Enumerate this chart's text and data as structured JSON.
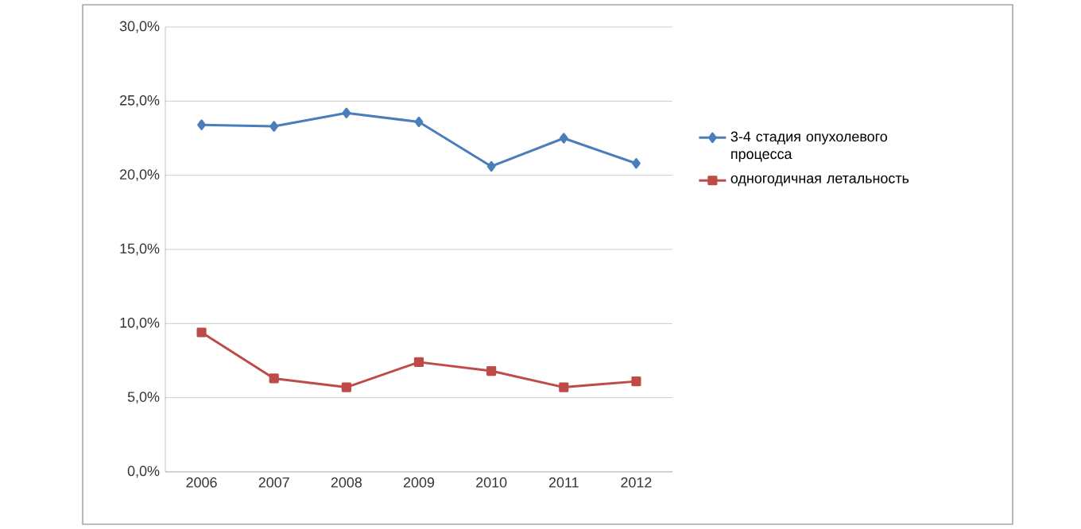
{
  "chart_data": {
    "type": "line",
    "categories": [
      "2006",
      "2007",
      "2008",
      "2009",
      "2010",
      "2011",
      "2012"
    ],
    "series": [
      {
        "name": "3-4 стадия опухолевого процесса",
        "color": "#4a7ebb",
        "marker": "diamond",
        "values": [
          23.4,
          23.3,
          24.2,
          23.6,
          20.6,
          22.5,
          20.8
        ]
      },
      {
        "name": "одногодичная летальность",
        "color": "#be4b48",
        "marker": "square",
        "values": [
          9.4,
          6.3,
          5.7,
          7.4,
          6.8,
          5.7,
          6.1
        ]
      }
    ],
    "ylim": [
      0,
      30
    ],
    "yticks": [
      {
        "value": 0,
        "label": "0,0%"
      },
      {
        "value": 5,
        "label": "5,0%"
      },
      {
        "value": 10,
        "label": "10,0%"
      },
      {
        "value": 15,
        "label": "15,0%"
      },
      {
        "value": 20,
        "label": "20,0%"
      },
      {
        "value": 25,
        "label": "25,0%"
      },
      {
        "value": 30,
        "label": "30,0%"
      }
    ],
    "grid": "y",
    "legend": "right",
    "line_style": "solid"
  }
}
